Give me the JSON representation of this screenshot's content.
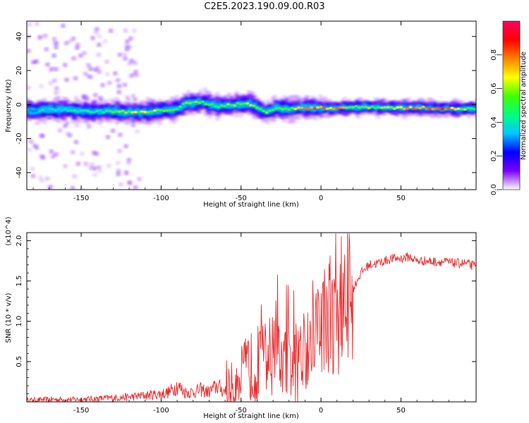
{
  "title": "C2E5.2023.190.09.00.R03",
  "chart_data": [
    {
      "type": "heatmap",
      "title": "",
      "xlabel": "Height of straight line (km)",
      "ylabel": "Frequency (Hz)",
      "xlim": [
        -184,
        97
      ],
      "ylim": [
        -50,
        49
      ],
      "x_ticks": [
        -150,
        -100,
        -50,
        0,
        50
      ],
      "y_ticks": [
        -40,
        -20,
        0,
        20,
        40
      ],
      "colorbar": {
        "label": "Normalized spectral amplitude",
        "range": [
          0.0,
          1.0
        ],
        "ticks": [
          0.0,
          0.2,
          0.4,
          0.6,
          0.8
        ],
        "colormap": [
          "#ffffff",
          "#7a00ff",
          "#0000ff",
          "#00c8ff",
          "#00ff80",
          "#40ff00",
          "#ffff00",
          "#ff8000",
          "#ff0000",
          "#ff0066"
        ]
      },
      "ridge": [
        {
          "x": -180,
          "y": -3.5,
          "amp": 0.35
        },
        {
          "x": -170,
          "y": -3.0,
          "amp": 0.42
        },
        {
          "x": -160,
          "y": -3.0,
          "amp": 0.45
        },
        {
          "x": -150,
          "y": -4.0,
          "amp": 0.48
        },
        {
          "x": -140,
          "y": -4.0,
          "amp": 0.45
        },
        {
          "x": -130,
          "y": -4.0,
          "amp": 0.55
        },
        {
          "x": -120,
          "y": -4.5,
          "amp": 0.62
        },
        {
          "x": -110,
          "y": -4.5,
          "amp": 0.68
        },
        {
          "x": -100,
          "y": -3.5,
          "amp": 0.6
        },
        {
          "x": -90,
          "y": -2.5,
          "amp": 0.55
        },
        {
          "x": -85,
          "y": 0.5,
          "amp": 0.55
        },
        {
          "x": -75,
          "y": 1.5,
          "amp": 0.58
        },
        {
          "x": -65,
          "y": -1.0,
          "amp": 0.55
        },
        {
          "x": -55,
          "y": 0.0,
          "amp": 0.6
        },
        {
          "x": -45,
          "y": 0.5,
          "amp": 0.65
        },
        {
          "x": -40,
          "y": -2.0,
          "amp": 0.62
        },
        {
          "x": -35,
          "y": -4.5,
          "amp": 0.6
        },
        {
          "x": -28,
          "y": -2.0,
          "amp": 0.58
        },
        {
          "x": -20,
          "y": -3.0,
          "amp": 0.6
        },
        {
          "x": -15,
          "y": -2.0,
          "amp": 0.7
        },
        {
          "x": -10,
          "y": -2.0,
          "amp": 0.85
        },
        {
          "x": 0,
          "y": -2.0,
          "amp": 0.82
        },
        {
          "x": 10,
          "y": -2.0,
          "amp": 0.85
        },
        {
          "x": 20,
          "y": -1.5,
          "amp": 0.55
        },
        {
          "x": 35,
          "y": -1.5,
          "amp": 0.6
        },
        {
          "x": 50,
          "y": -2.0,
          "amp": 0.75
        },
        {
          "x": 65,
          "y": -2.0,
          "amp": 0.85
        },
        {
          "x": 80,
          "y": -2.5,
          "amp": 0.82
        },
        {
          "x": 95,
          "y": -2.5,
          "amp": 0.5
        }
      ]
    },
    {
      "type": "line",
      "title": "",
      "xlabel": "Height of straight line (km)",
      "ylabel": "SNR (10 * v/v)",
      "y_multiplier": "(x10^4)",
      "xlim": [
        -184,
        97
      ],
      "ylim": [
        0.0,
        2.1
      ],
      "x_ticks": [
        -150,
        -100,
        -50,
        0,
        50
      ],
      "y_ticks": [
        0.5,
        1.0,
        1.5,
        2.0
      ],
      "series": [
        {
          "color": "#e8282a",
          "x": [
            -184,
            -170,
            -160,
            -150,
            -140,
            -130,
            -120,
            -110,
            -100,
            -95,
            -90,
            -85,
            -80,
            -75,
            -70,
            -65,
            -60,
            -55,
            -50,
            -45,
            -40,
            -35,
            -30,
            -25,
            -20,
            -15,
            -10,
            -5,
            0,
            5,
            10,
            15,
            20,
            25,
            30,
            35,
            40,
            45,
            50,
            55,
            60,
            65,
            70,
            75,
            80,
            85,
            90,
            97
          ],
          "y": [
            0.02,
            0.03,
            0.03,
            0.03,
            0.04,
            0.05,
            0.06,
            0.08,
            0.1,
            0.12,
            0.2,
            0.12,
            0.12,
            0.15,
            0.12,
            0.2,
            0.12,
            0.18,
            0.3,
            0.45,
            0.4,
            0.55,
            0.6,
            0.5,
            0.5,
            0.4,
            0.7,
            0.9,
            1.0,
            1.1,
            1.0,
            1.2,
            1.4,
            1.6,
            1.7,
            1.72,
            1.75,
            1.78,
            1.78,
            1.8,
            1.75,
            1.75,
            1.74,
            1.74,
            1.73,
            1.72,
            1.72,
            1.68
          ]
        }
      ]
    }
  ]
}
